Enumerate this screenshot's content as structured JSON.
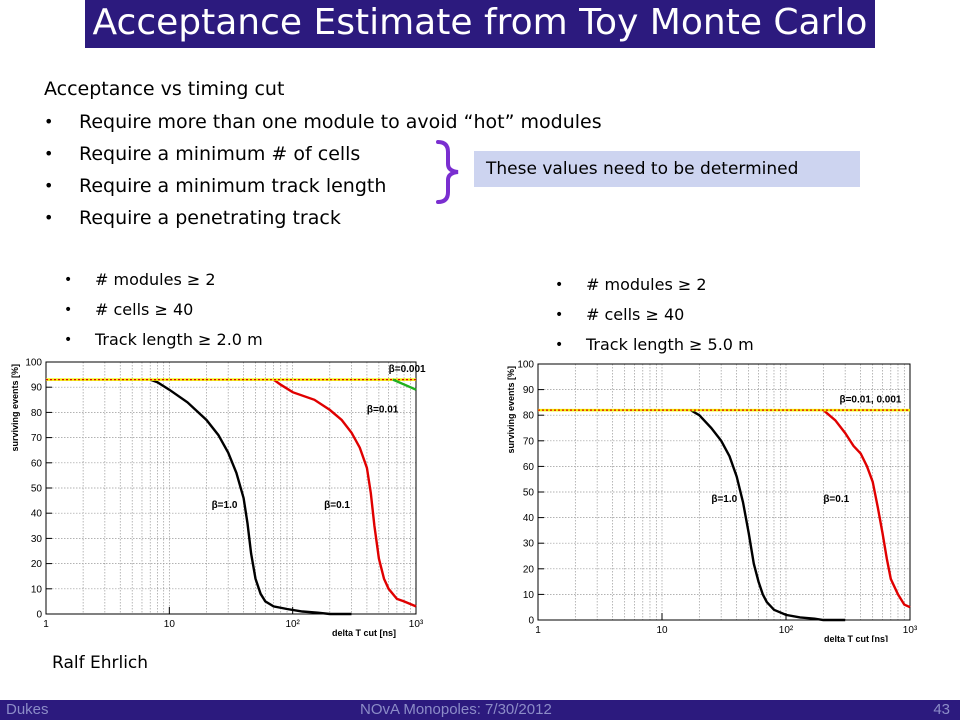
{
  "slide": {
    "title": "Acceptance Estimate from Toy Monte Carlo",
    "heading": "Acceptance vs timing cut",
    "bullets": [
      "Require more than one module to avoid “hot” modules",
      "Require a minimum # of cells",
      "Require a minimum track length",
      "Require a penetrating track"
    ],
    "bullet_symbol": "•",
    "callout": "These values need to be determined",
    "brace_color": "#7a2ed0",
    "cuts_left": [
      "# modules ≥ 2",
      "# cells ≥ 40",
      "Track length ≥ 2.0 m"
    ],
    "cuts_right": [
      "# modules ≥ 2",
      "# cells ≥ 40",
      "Track length ≥ 5.0 m"
    ],
    "author": "Ralf Ehrlich",
    "footer": {
      "left": "Dukes",
      "center": "NOvA Monopoles:  7/30/2012",
      "right": "43"
    }
  },
  "chart_data": [
    {
      "type": "line",
      "xscale": "log",
      "xlim": [
        1,
        1000
      ],
      "ylim": [
        0,
        100
      ],
      "xlabel": "delta T cut [ns]",
      "ylabel": "surviving events [%]",
      "xticks": [
        "1",
        "10",
        "10²",
        "10³"
      ],
      "yticks": [
        0,
        10,
        20,
        30,
        40,
        50,
        60,
        70,
        80,
        90,
        100
      ],
      "grid": true,
      "series": [
        {
          "name": "β=1.0",
          "color": "#000000",
          "label_at": [
            22,
            42
          ],
          "x": [
            7,
            8,
            10,
            14,
            20,
            25,
            30,
            35,
            40,
            43,
            46,
            50,
            55,
            60,
            70,
            90,
            120,
            160,
            200,
            300
          ],
          "y": [
            93,
            92,
            89,
            84,
            77,
            71,
            64,
            56,
            46,
            36,
            24,
            14,
            8,
            5,
            3,
            2,
            1,
            0.5,
            0,
            0
          ]
        },
        {
          "name": "β=0.1",
          "color": "#e00000",
          "label_at": [
            180,
            42
          ],
          "x": [
            70,
            80,
            100,
            150,
            200,
            250,
            300,
            350,
            400,
            430,
            460,
            500,
            550,
            600,
            700,
            800,
            1000
          ],
          "y": [
            93,
            91,
            88,
            85,
            81,
            77,
            72,
            66,
            58,
            48,
            35,
            22,
            14,
            10,
            6,
            5,
            3
          ]
        },
        {
          "name": "β=0.01",
          "color": "#e00000",
          "label_at": [
            400,
            80
          ],
          "x": [
            1,
            1000
          ],
          "y": [
            93,
            93
          ]
        },
        {
          "name": "β=0.001",
          "color": "#20b020",
          "label_at": [
            600,
            96
          ],
          "x": [
            650,
            1000
          ],
          "y": [
            93,
            89
          ]
        }
      ]
    },
    {
      "type": "line",
      "xscale": "log",
      "xlim": [
        1,
        1000
      ],
      "ylim": [
        0,
        100
      ],
      "xlabel": "delta T cut [ns]",
      "ylabel": "surviving events [%]",
      "xticks": [
        "1",
        "10",
        "10²",
        "10³"
      ],
      "yticks": [
        0,
        10,
        20,
        30,
        40,
        50,
        60,
        70,
        80,
        90,
        100
      ],
      "grid": true,
      "series": [
        {
          "name": "β=1.0",
          "color": "#000000",
          "label_at": [
            25,
            46
          ],
          "x": [
            17,
            20,
            25,
            30,
            35,
            40,
            45,
            50,
            55,
            60,
            65,
            70,
            80,
            100,
            130,
            170,
            200,
            300
          ],
          "y": [
            82,
            80,
            75,
            70,
            64,
            56,
            46,
            34,
            22,
            15,
            10,
            7,
            4,
            2,
            1,
            0.5,
            0,
            0
          ]
        },
        {
          "name": "β=0.1",
          "color": "#e00000",
          "label_at": [
            200,
            46
          ],
          "x": [
            200,
            250,
            300,
            350,
            400,
            450,
            500,
            550,
            600,
            650,
            700,
            800,
            900,
            1000
          ],
          "y": [
            82,
            78,
            73,
            68,
            65,
            60,
            54,
            44,
            34,
            24,
            16,
            10,
            6,
            5
          ]
        },
        {
          "name": "β=0.01, 0.001",
          "color": "#e00000",
          "label_at": [
            270,
            85
          ],
          "x": [
            1,
            1000
          ],
          "y": [
            82,
            82
          ]
        }
      ]
    }
  ]
}
